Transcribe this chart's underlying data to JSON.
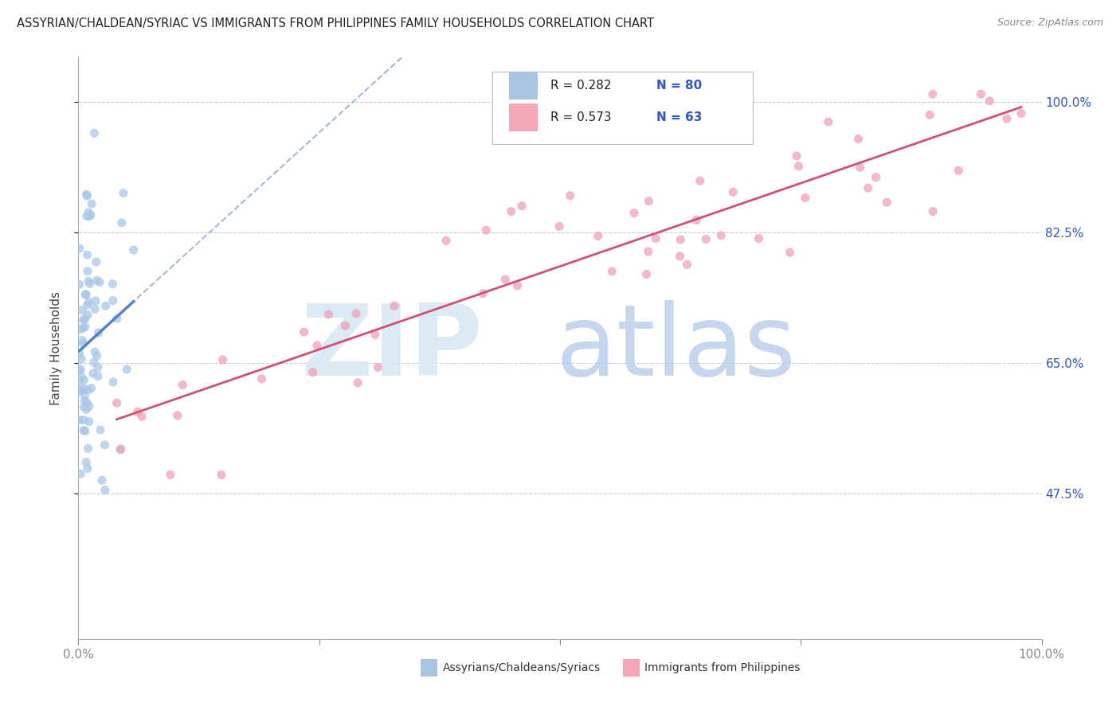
{
  "title": "ASSYRIAN/CHALDEAN/SYRIAC VS IMMIGRANTS FROM PHILIPPINES FAMILY HOUSEHOLDS CORRELATION CHART",
  "source": "Source: ZipAtlas.com",
  "ylabel": "Family Households",
  "x_min": 0.0,
  "x_max": 1.0,
  "y_min": 0.28,
  "y_max": 1.06,
  "y_ticks": [
    0.475,
    0.65,
    0.825,
    1.0
  ],
  "y_tick_labels": [
    "47.5%",
    "65.0%",
    "82.5%",
    "100.0%"
  ],
  "x_ticks": [
    0.0,
    1.0
  ],
  "x_tick_labels": [
    "0.0%",
    "100.0%"
  ],
  "legend_color1": "#a8c4e0",
  "legend_color2": "#f4a7b9",
  "scatter_color1": "#a8c8e8",
  "scatter_color2": "#f0a0b8",
  "trendline_color1": "#5580cc",
  "trendline_color2": "#d05070",
  "trendline_dashed_color": "#9ab0d8",
  "R1": 0.282,
  "N1": 80,
  "R2": 0.573,
  "N2": 63,
  "legend_x_label": "Assyrians/Chaldeans/Syriacs",
  "legend_y_label": "Immigrants from Philippines",
  "watermark_zip_color": "#d8e8f4",
  "watermark_atlas_color": "#b8ccec"
}
